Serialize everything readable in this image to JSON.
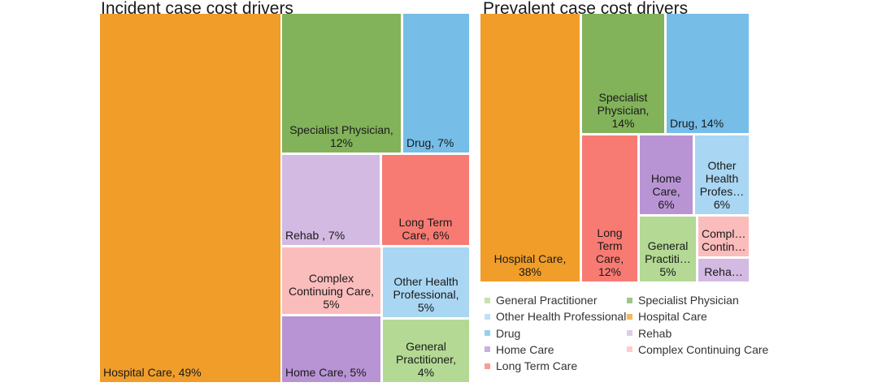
{
  "chart_data": [
    {
      "type": "treemap",
      "title": "Incident case cost drivers",
      "items": [
        {
          "name": "Hospital Care",
          "value": 49,
          "label": "Hospital Care, 49%",
          "color": "#f09d2a"
        },
        {
          "name": "Specialist Physician",
          "value": 12,
          "label": "Specialist Physician,\n12%",
          "color": "#82b25a"
        },
        {
          "name": "Drug",
          "value": 7,
          "label": "Drug, 7%",
          "color": "#76bde8"
        },
        {
          "name": "Rehab",
          "value": 7,
          "label": "Rehab , 7%",
          "color": "#d3bae2"
        },
        {
          "name": "Long Term Care",
          "value": 6,
          "label": "Long Term\nCare, 6%",
          "color": "#f77b73"
        },
        {
          "name": "Complex Continuing Care",
          "value": 5,
          "label": "Complex\nContinuing Care,\n5%",
          "color": "#fbbcbc"
        },
        {
          "name": "Other Health Professional",
          "value": 5,
          "label": "Other Health\nProfessional,\n5%",
          "color": "#a9d6f2"
        },
        {
          "name": "Home Care",
          "value": 5,
          "label": "Home Care, 5%",
          "color": "#b894d4"
        },
        {
          "name": "General Practitioner",
          "value": 4,
          "label": "General\nPractitioner, 4%",
          "color": "#b3d994"
        }
      ]
    },
    {
      "type": "treemap",
      "title": "Prevalent case cost drivers",
      "items": [
        {
          "name": "Hospital Care",
          "value": 38,
          "label": "Hospital Care,\n38%",
          "color": "#f09d2a"
        },
        {
          "name": "Specialist Physician",
          "value": 14,
          "label": "Specialist\nPhysician,\n14%",
          "color": "#82b25a"
        },
        {
          "name": "Drug",
          "value": 14,
          "label": "Drug, 14%",
          "color": "#76bde8"
        },
        {
          "name": "Long Term Care",
          "value": 12,
          "label": "Long\nTerm\nCare,\n12%",
          "color": "#f77b73"
        },
        {
          "name": "Home Care",
          "value": 6,
          "label": "Home\nCare, 6%",
          "color": "#b894d4"
        },
        {
          "name": "Other Health Professional",
          "value": 6,
          "label": "Other\nHealth\nProfes…\n6%",
          "color": "#a9d6f2"
        },
        {
          "name": "General Practitioner",
          "value": 5,
          "label": "General\nPractiti…\n5%",
          "color": "#b3d994"
        },
        {
          "name": "Complex Continuing Care",
          "value": 3,
          "label": "Compl…\nContin…",
          "color": "#fbbcbc"
        },
        {
          "name": "Rehab",
          "value": 2,
          "label": "Reha…",
          "color": "#d3bae2"
        }
      ],
      "legend": [
        {
          "name": "General Practitioner",
          "color": "#b3d994"
        },
        {
          "name": "Specialist Physician",
          "color": "#82b25a"
        },
        {
          "name": "Other Health Professional",
          "color": "#a9d6f2"
        },
        {
          "name": "Hospital Care",
          "color": "#f09d2a"
        },
        {
          "name": "Drug",
          "color": "#76bde8"
        },
        {
          "name": "Rehab",
          "color": "#d3bae2"
        },
        {
          "name": "Home Care",
          "color": "#b894d4"
        },
        {
          "name": "Complex Continuing Care",
          "color": "#fbbcbc"
        },
        {
          "name": "Long Term Care",
          "color": "#f77b73"
        }
      ],
      "legend_position": "bottom"
    }
  ]
}
